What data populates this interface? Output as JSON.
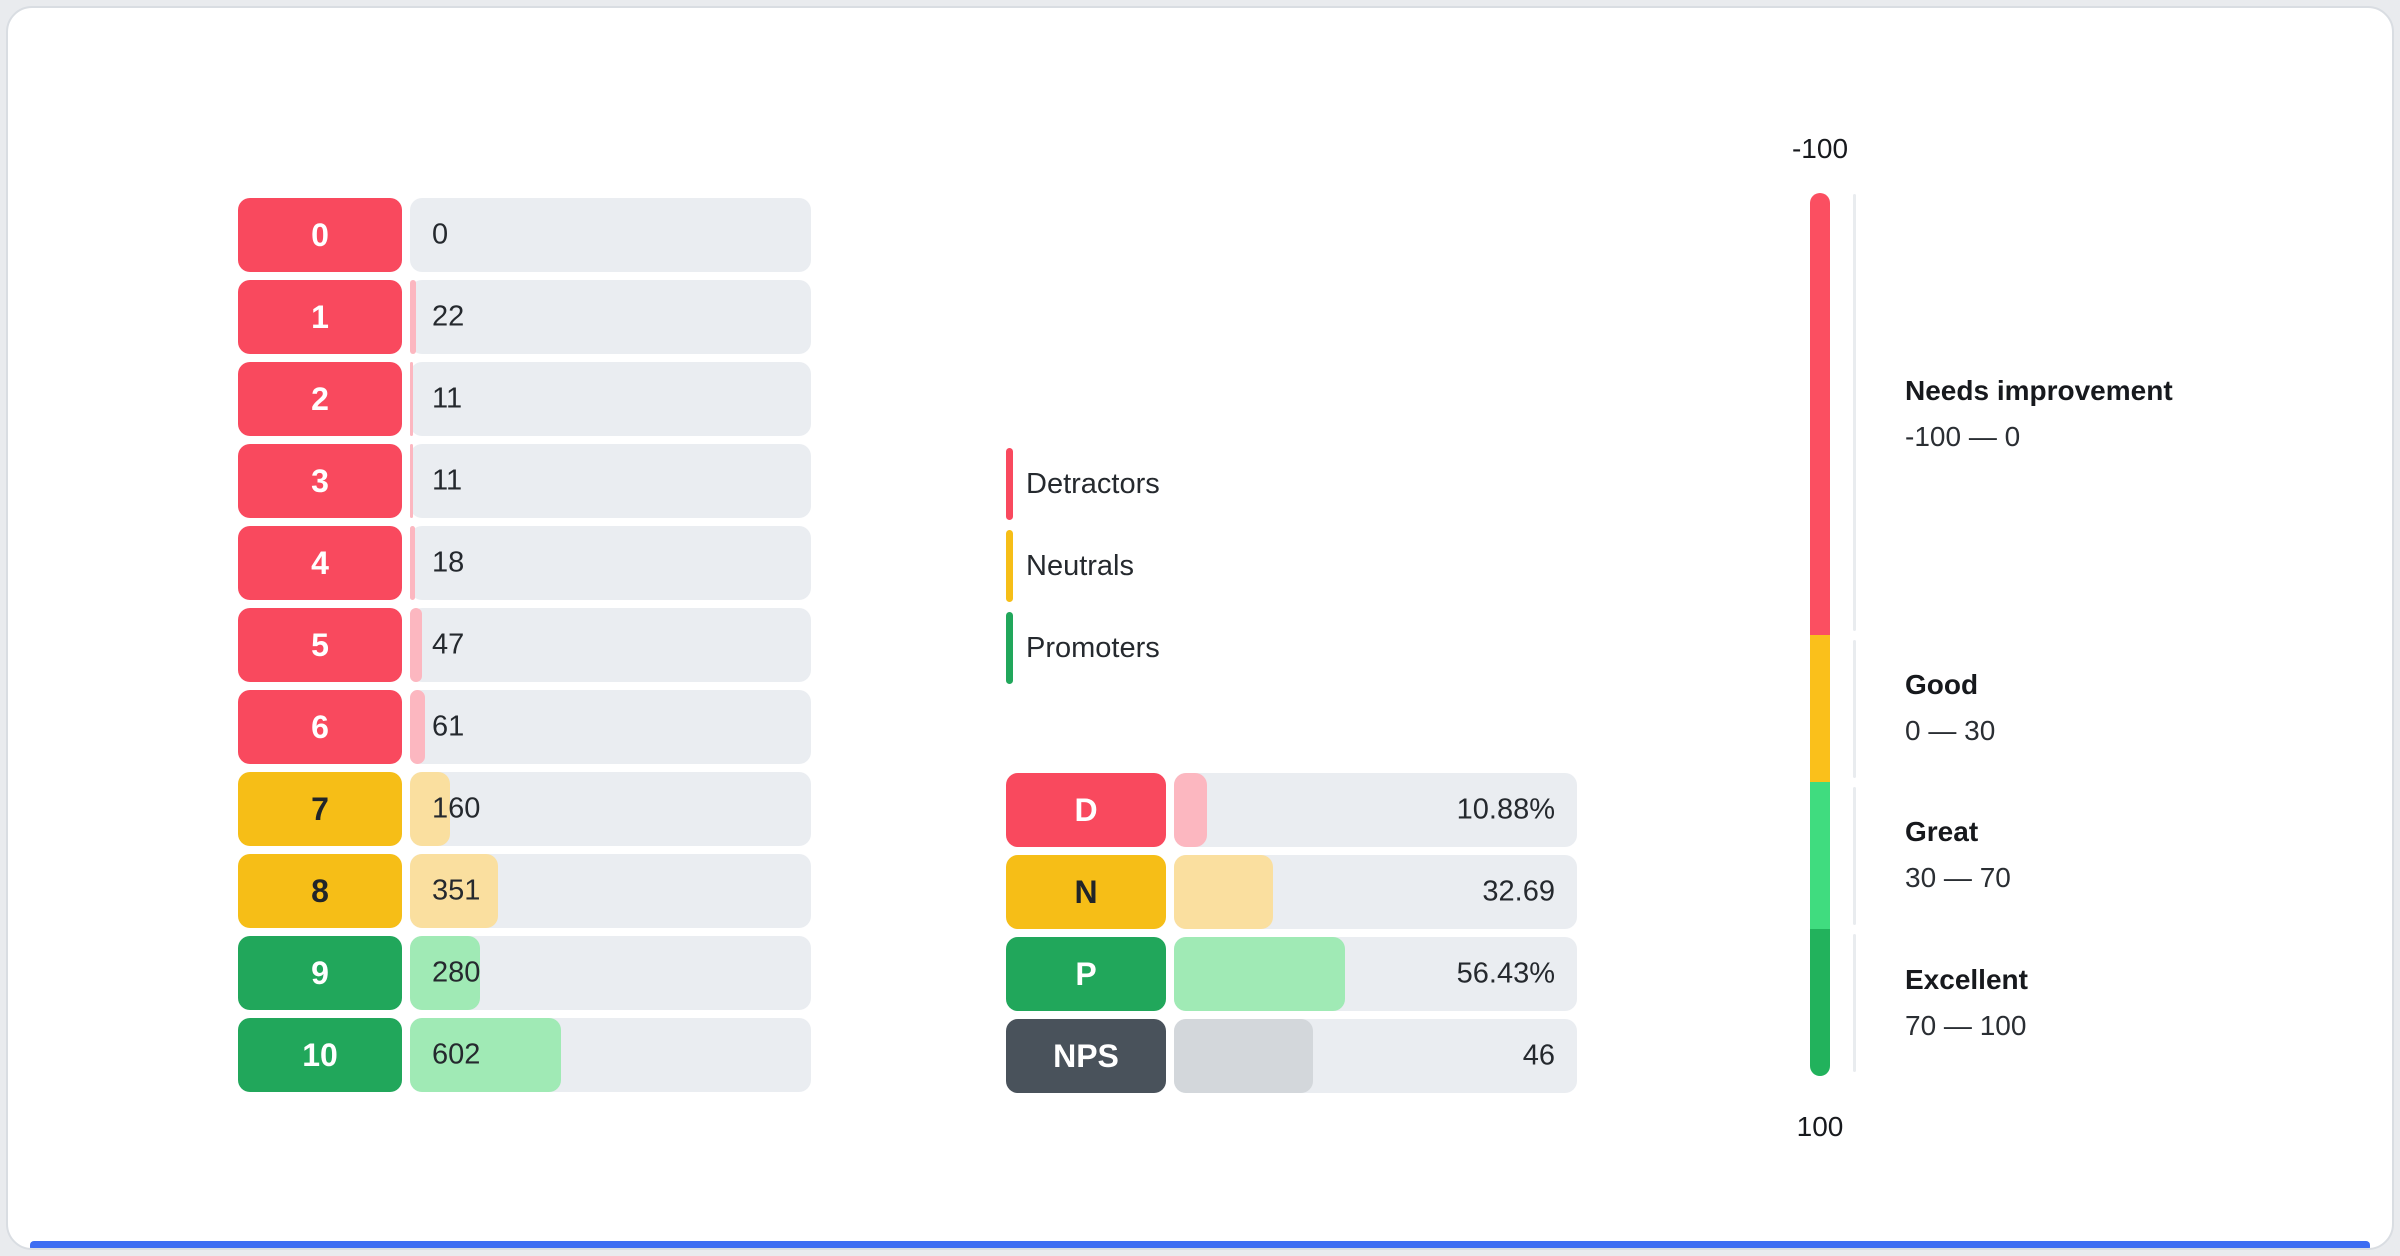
{
  "colors": {
    "detractor": "#F9495E",
    "neutral": "#F6BE17",
    "promoter": "#21A75B",
    "nps": "#49525B",
    "detractor_light": "#FCB7C0",
    "neutral_light": "#FADF9F",
    "promoter_light": "#A0EAB5",
    "nps_light": "#D3D7DB",
    "track": "#EAEDF1",
    "footer_accent": "#3D6DF2"
  },
  "histogram": {
    "scale_max": 1600,
    "rows": [
      {
        "score": "0",
        "count": 0,
        "group": "detractor"
      },
      {
        "score": "1",
        "count": 22,
        "group": "detractor"
      },
      {
        "score": "2",
        "count": 11,
        "group": "detractor"
      },
      {
        "score": "3",
        "count": 11,
        "group": "detractor"
      },
      {
        "score": "4",
        "count": 18,
        "group": "detractor"
      },
      {
        "score": "5",
        "count": 47,
        "group": "detractor"
      },
      {
        "score": "6",
        "count": 61,
        "group": "detractor"
      },
      {
        "score": "7",
        "count": 160,
        "group": "neutral"
      },
      {
        "score": "8",
        "count": 351,
        "group": "neutral"
      },
      {
        "score": "9",
        "count": 280,
        "group": "promoter"
      },
      {
        "score": "10",
        "count": 602,
        "group": "promoter"
      }
    ]
  },
  "legend": {
    "items": [
      {
        "label": "Detractors",
        "group": "detractor"
      },
      {
        "label": "Neutrals",
        "group": "neutral"
      },
      {
        "label": "Promoters",
        "group": "promoter"
      }
    ]
  },
  "summary": {
    "scale_max": 133,
    "rows": [
      {
        "label": "D",
        "value": 10.88,
        "value_display": "10.88%",
        "group": "detractor"
      },
      {
        "label": "N",
        "value": 32.69,
        "value_display": "32.69",
        "group": "neutral"
      },
      {
        "label": "P",
        "value": 56.43,
        "value_display": "56.43%",
        "group": "promoter"
      },
      {
        "label": "NPS",
        "value": 46,
        "value_display": "46",
        "group": "nps"
      }
    ]
  },
  "gauge": {
    "top_label": "-100",
    "bottom_label": "100",
    "zones": [
      {
        "title": "Needs improvement",
        "range": "-100 — 0",
        "color": "#FB4F61",
        "height_pct": 50.0
      },
      {
        "title": "Good",
        "range": "0 — 30",
        "color": "#FAC01B",
        "height_pct": 16.65
      },
      {
        "title": "Great",
        "range": "30 — 70",
        "color": "#40DC7F",
        "height_pct": 16.75
      },
      {
        "title": "Excellent",
        "range": "70 — 100",
        "color": "#22B25C",
        "height_pct": 16.6
      }
    ]
  },
  "chart_data": [
    {
      "type": "bar",
      "title": "NPS score distribution",
      "orientation": "horizontal",
      "categories": [
        "0",
        "1",
        "2",
        "3",
        "4",
        "5",
        "6",
        "7",
        "8",
        "9",
        "10"
      ],
      "values": [
        0,
        22,
        11,
        11,
        18,
        47,
        61,
        160,
        351,
        280,
        602
      ],
      "groups": [
        "detractor",
        "detractor",
        "detractor",
        "detractor",
        "detractor",
        "detractor",
        "detractor",
        "neutral",
        "neutral",
        "promoter",
        "promoter"
      ],
      "xlim": [
        0,
        1600
      ],
      "legend_position": "right",
      "legend_entries": [
        "Detractors",
        "Neutrals",
        "Promoters"
      ]
    },
    {
      "type": "bar",
      "title": "NPS summary",
      "orientation": "horizontal",
      "categories": [
        "D",
        "N",
        "P",
        "NPS"
      ],
      "values": [
        10.88,
        32.69,
        56.43,
        46
      ],
      "value_labels": [
        "10.88%",
        "32.69",
        "56.43%",
        "46"
      ],
      "xlim": [
        0,
        133
      ]
    },
    {
      "type": "gauge",
      "title": "NPS scale",
      "axis_range": [
        -100,
        100
      ],
      "axis_labels": [
        "-100",
        "100"
      ],
      "zones": [
        {
          "label": "Needs improvement",
          "from": -100,
          "to": 0
        },
        {
          "label": "Good",
          "from": 0,
          "to": 30
        },
        {
          "label": "Great",
          "from": 30,
          "to": 70
        },
        {
          "label": "Excellent",
          "from": 70,
          "to": 100
        }
      ]
    }
  ]
}
